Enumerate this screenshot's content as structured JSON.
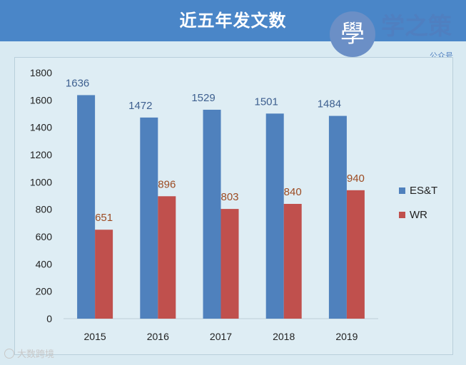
{
  "header": {
    "title": "近五年发文数",
    "logo_glyph": "學",
    "logo_name": "学之策",
    "logo_sub": "公众号"
  },
  "watermark": "大数跨境",
  "colors": {
    "banner": "#4a86c8",
    "series_es_t": "#4f81bd",
    "series_wr": "#c0504d",
    "label_es_t": "#3d5f8f",
    "label_wr": "#9c4b22"
  },
  "chart_data": {
    "type": "bar",
    "title": "近五年发文数",
    "categories": [
      "2015",
      "2016",
      "2017",
      "2018",
      "2019"
    ],
    "series": [
      {
        "name": "ES&T",
        "values": [
          1636,
          1472,
          1529,
          1501,
          1484
        ]
      },
      {
        "name": "WR",
        "values": [
          651,
          896,
          803,
          840,
          940
        ]
      }
    ],
    "xlabel": "",
    "ylabel": "",
    "ylim": [
      0,
      1800
    ],
    "yticks": [
      0,
      200,
      400,
      600,
      800,
      1000,
      1200,
      1400,
      1600,
      1800
    ],
    "grid": false,
    "legend": "right",
    "data_labels": true
  }
}
